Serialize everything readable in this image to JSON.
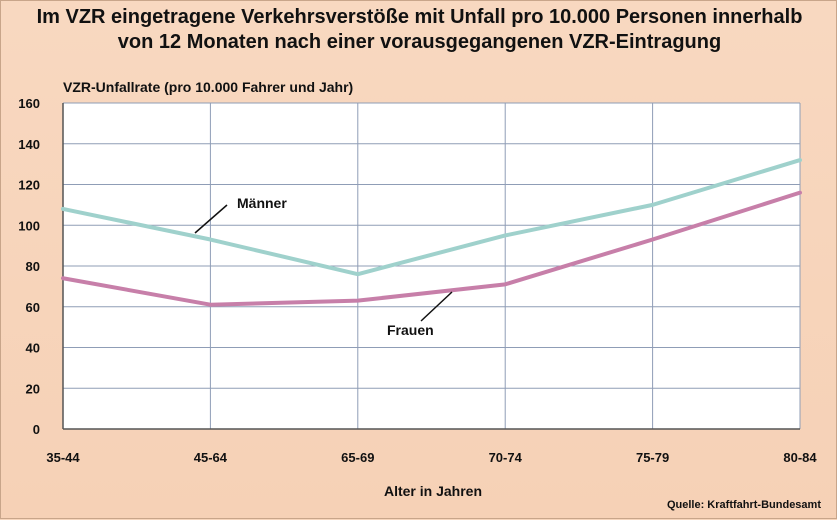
{
  "title": {
    "line1": "Im VZR eingetragene Verkehrsverstöße mit Unfall pro 10.000 Personen innerhalb",
    "line2": "von 12 Monaten nach einer vorausgegangenen VZR-Eintragung"
  },
  "source": "Quelle: Kraftfahrt-Bundesamt",
  "chart_data": {
    "type": "line",
    "title": "Im VZR eingetragene Verkehrsverstöße mit Unfall pro 10.000 Personen innerhalb von 12 Monaten nach einer vorausgegangenen VZR-Eintragung",
    "ylabel": "VZR-Unfallrate (pro 10.000 Fahrer und Jahr)",
    "xlabel": "Alter in Jahren",
    "categories": [
      "35-44",
      "45-64",
      "65-69",
      "70-74",
      "75-79",
      "80-84"
    ],
    "ylim": [
      0,
      160
    ],
    "yticks": [
      0,
      20,
      40,
      60,
      80,
      100,
      120,
      140,
      160
    ],
    "grid": true,
    "series": [
      {
        "name": "Männer",
        "color": "#9fd1cc",
        "values": [
          108,
          93,
          76,
          95,
          110,
          132
        ]
      },
      {
        "name": "Frauen",
        "color": "#c77fa9",
        "values": [
          74,
          61,
          63,
          71,
          93,
          116
        ]
      }
    ]
  }
}
